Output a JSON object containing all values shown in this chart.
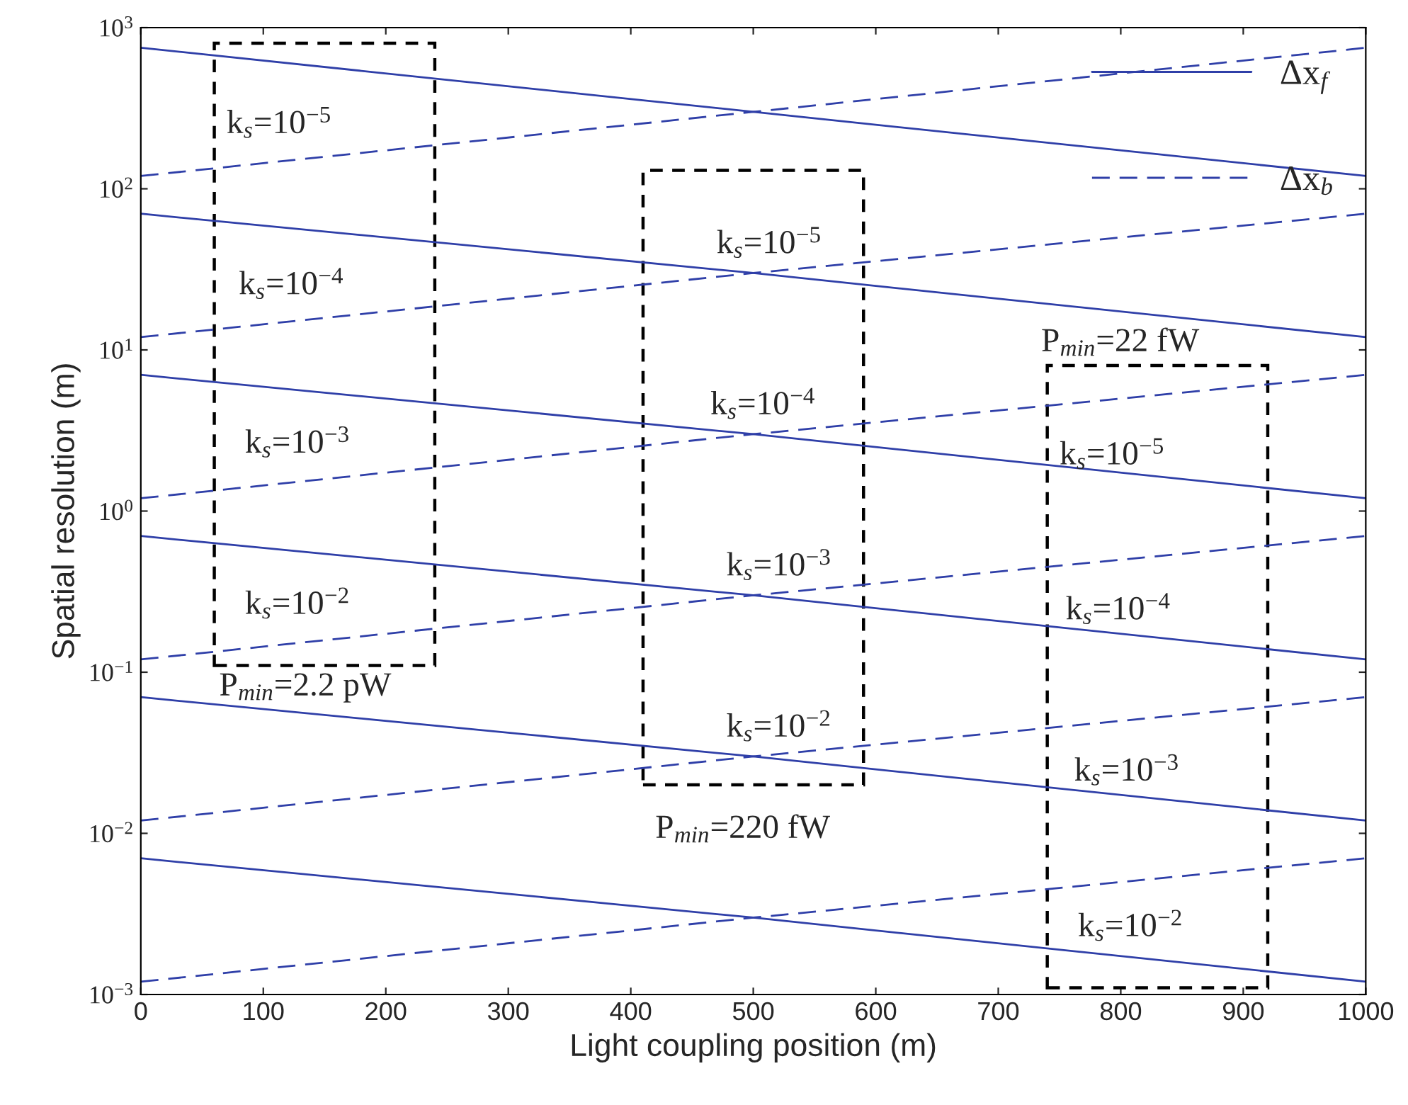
{
  "chart_data": {
    "type": "line",
    "xlabel": "Light coupling position (m)",
    "ylabel": "Spatial resolution (m)",
    "log": "y",
    "xlim": [
      0,
      1000
    ],
    "xticks": [
      0,
      100,
      200,
      300,
      400,
      500,
      600,
      700,
      800,
      900,
      1000
    ],
    "ylim": [
      0.001,
      1000
    ],
    "yticks": [
      {
        "value": 0.001,
        "label": "10$^{−3}$"
      },
      {
        "value": 0.01,
        "label": "10$^{−2}$"
      },
      {
        "value": 0.1,
        "label": "10$^{−1}$"
      },
      {
        "value": 1,
        "label": "10$^{0}$"
      },
      {
        "value": 10,
        "label": "10$^{1}$"
      },
      {
        "value": 100,
        "label": "10$^{2}$"
      },
      {
        "value": 1000,
        "label": "10$^{3}$"
      }
    ],
    "grid": false,
    "legend": "top right",
    "x": [
      0,
      500,
      1000
    ],
    "series": [
      {
        "name": "Δx$_{f}$",
        "color": "#2f3fa8",
        "line_style": "solid",
        "values": [
          750,
          300,
          120
        ]
      },
      {
        "name": "Δx$_{b}$",
        "color": "#2f3fa8",
        "line_style": "dashed",
        "values": [
          120,
          300,
          750
        ]
      },
      {
        "color": "#2f3fa8",
        "line_style": "solid",
        "values": [
          70,
          30,
          12
        ]
      },
      {
        "color": "#2f3fa8",
        "line_style": "dashed",
        "values": [
          12,
          30,
          70
        ]
      },
      {
        "color": "#2f3fa8",
        "line_style": "solid",
        "values": [
          7,
          3,
          1.2
        ]
      },
      {
        "color": "#2f3fa8",
        "line_style": "dashed",
        "values": [
          1.2,
          3,
          7
        ]
      },
      {
        "color": "#2f3fa8",
        "line_style": "solid",
        "values": [
          0.7,
          0.3,
          0.12
        ]
      },
      {
        "color": "#2f3fa8",
        "line_style": "dashed",
        "values": [
          0.12,
          0.3,
          0.7
        ]
      },
      {
        "color": "#2f3fa8",
        "line_style": "solid",
        "values": [
          0.07,
          0.03,
          0.012
        ]
      },
      {
        "color": "#2f3fa8",
        "line_style": "dashed",
        "values": [
          0.012,
          0.03,
          0.07
        ]
      },
      {
        "color": "#2f3fa8",
        "line_style": "solid",
        "values": [
          0.007,
          0.003,
          0.0012
        ]
      },
      {
        "color": "#2f3fa8",
        "line_style": "dashed",
        "values": [
          0.0012,
          0.003,
          0.007
        ]
      }
    ],
    "annotations": [
      "k$_{s}$=10$^{−5}$",
      "k$_{s}$=10$^{−4}$",
      "k$_{s}$=10$^{−3}$",
      "k$_{s}$=10$^{−2}$",
      "P$_{min}$=2.2 pW",
      "k$_{s}$=10$^{−5}$",
      "k$_{s}$=10$^{−4}$",
      "k$_{s}$=10$^{−3}$",
      "k$_{s}$=10$^{−2}$",
      "P$_{min}$=220 fW",
      "k$_{s}$=10$^{−5}$",
      "k$_{s}$=10$^{−4}$",
      "k$_{s}$=10$^{−3}$",
      "k$_{s}$=10$^{−2}$",
      "P$_{min}$=22 fW"
    ]
  }
}
